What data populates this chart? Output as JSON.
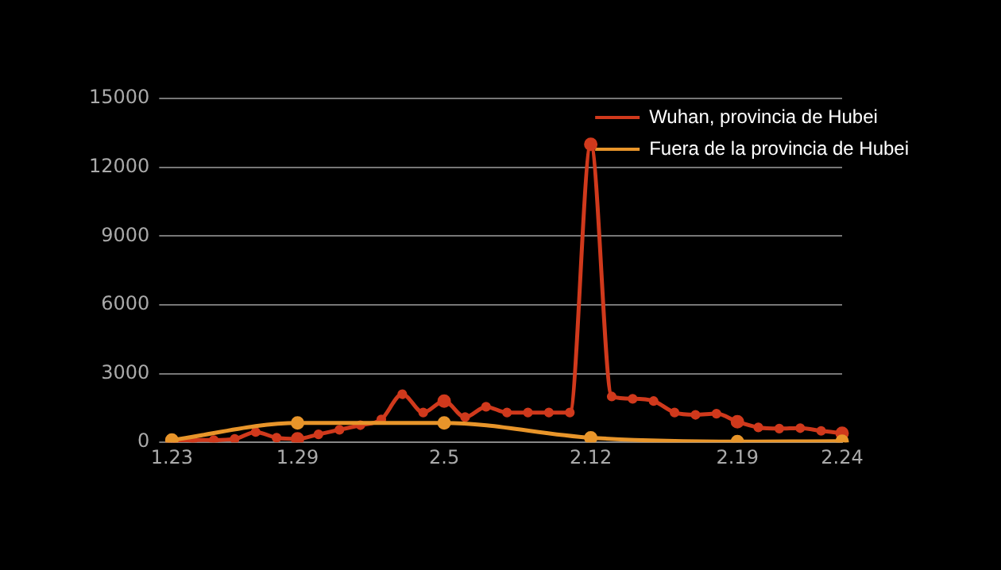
{
  "chart_data": {
    "type": "line",
    "categories": [
      "1.23",
      null,
      null,
      null,
      null,
      null,
      "1.29",
      null,
      null,
      null,
      null,
      null,
      null,
      "2.5",
      null,
      null,
      null,
      null,
      null,
      null,
      "2.12",
      null,
      null,
      null,
      null,
      null,
      null,
      "2.19",
      null,
      null,
      null,
      null,
      "2.24"
    ],
    "series": [
      {
        "name": "Wuhan, provincia de Hubei",
        "color": "#d0391c",
        "values": [
          70,
          100,
          100,
          150,
          450,
          200,
          150,
          350,
          550,
          750,
          1000,
          2100,
          1300,
          1800,
          1100,
          1550,
          1300,
          1300,
          1300,
          1300,
          13000,
          2000,
          1900,
          1800,
          1300,
          1200,
          1250,
          900,
          650,
          600,
          620,
          500,
          400
        ]
      },
      {
        "name": "Fuera de la provincia de Hubei",
        "color": "#e8952a",
        "values": [
          100,
          null,
          null,
          null,
          null,
          null,
          850,
          null,
          null,
          null,
          null,
          null,
          null,
          850,
          null,
          null,
          null,
          null,
          null,
          null,
          200,
          null,
          null,
          null,
          null,
          null,
          null,
          30,
          null,
          null,
          null,
          null,
          50
        ]
      }
    ],
    "ylim": [
      0,
      15000
    ],
    "yticks": [
      0,
      3000,
      6000,
      9000,
      12000,
      15000
    ],
    "grid": "y",
    "legend": "top right",
    "marker": "circle",
    "line_style": "solid"
  }
}
